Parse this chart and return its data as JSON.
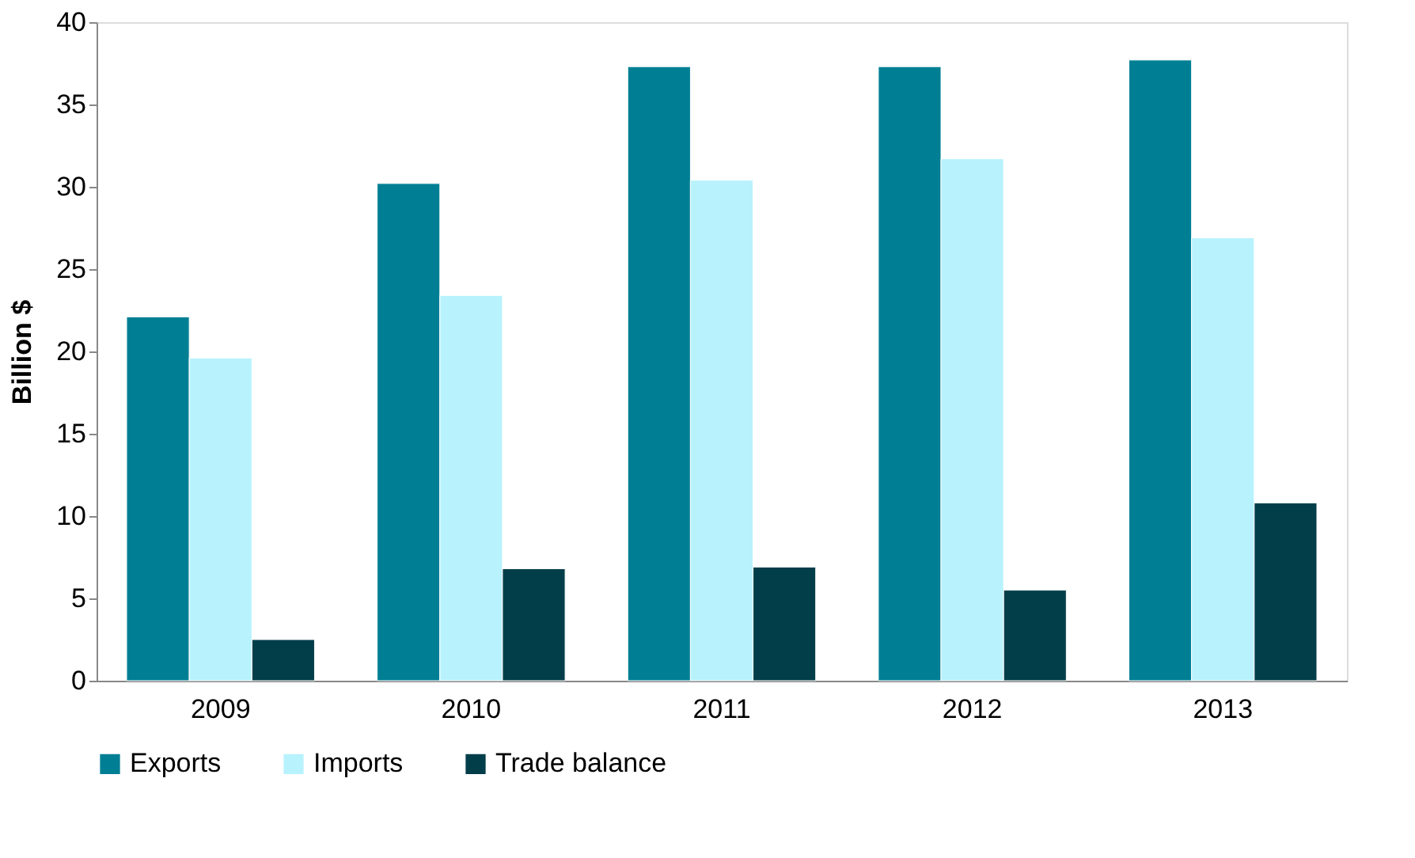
{
  "chart_data": {
    "type": "bar",
    "ylabel": "Billion $",
    "categories": [
      "2009",
      "2010",
      "2011",
      "2012",
      "2013"
    ],
    "series": [
      {
        "name": "Exports",
        "color": "#007f94",
        "values": [
          22.1,
          30.2,
          37.3,
          37.3,
          37.7
        ]
      },
      {
        "name": "Imports",
        "color": "#b8f2fd",
        "values": [
          19.6,
          23.4,
          30.4,
          31.7,
          26.9
        ]
      },
      {
        "name": "Trade balance",
        "color": "#023e4a",
        "values": [
          2.5,
          6.8,
          6.9,
          5.5,
          10.8
        ]
      }
    ],
    "ylim": [
      0,
      40
    ],
    "yticks": [
      0,
      5,
      10,
      15,
      20,
      25,
      30,
      35,
      40
    ],
    "grid": false,
    "legend": "bottom"
  }
}
